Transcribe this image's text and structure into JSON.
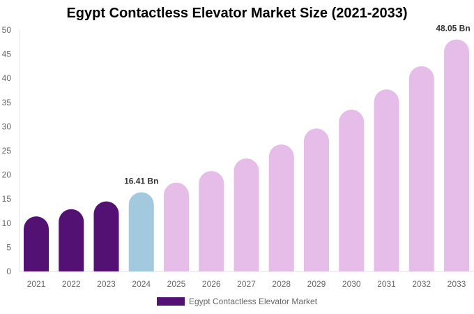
{
  "chart_data": {
    "type": "bar",
    "title": "Egypt Contactless Elevator Market Size (2021-2033)",
    "categories": [
      "2021",
      "2022",
      "2023",
      "2024",
      "2025",
      "2026",
      "2027",
      "2028",
      "2029",
      "2030",
      "2031",
      "2032",
      "2033"
    ],
    "series": [
      {
        "name": "Egypt Contactless Elevator Market",
        "values": [
          11.4,
          12.9,
          14.5,
          16.41,
          18.4,
          20.8,
          23.4,
          26.3,
          29.6,
          33.5,
          37.7,
          42.5,
          48.05
        ]
      }
    ],
    "data_labels": [
      {
        "category": "2024",
        "text": "16.41 Bn"
      },
      {
        "category": "2033",
        "text": "48.05 Bn"
      }
    ],
    "ylim": [
      0,
      50
    ],
    "yticks": [
      0,
      5,
      10,
      15,
      20,
      25,
      30,
      35,
      40,
      45,
      50
    ],
    "grid": false,
    "legend_placement": "bottom",
    "colors": {
      "historical": "#531273",
      "current": "#a3c9de",
      "forecast": "#e6bce8"
    },
    "color_by_category": [
      "historical",
      "historical",
      "historical",
      "current",
      "forecast",
      "forecast",
      "forecast",
      "forecast",
      "forecast",
      "forecast",
      "forecast",
      "forecast",
      "forecast"
    ]
  }
}
